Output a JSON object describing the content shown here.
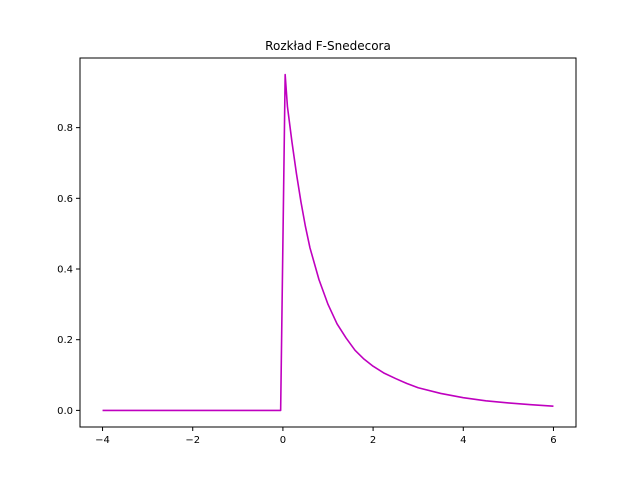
{
  "chart_data": {
    "type": "line",
    "title": "Rozkład F-Snedecora",
    "xlabel": "",
    "ylabel": "",
    "xlim": [
      -4.5,
      6.5
    ],
    "ylim": [
      -0.047,
      0.997
    ],
    "grid": false,
    "xticks": [
      -4,
      -2,
      0,
      2,
      4,
      6
    ],
    "xtick_labels": [
      "−4",
      "−2",
      "0",
      "2",
      "4",
      "6"
    ],
    "yticks": [
      0.0,
      0.2,
      0.4,
      0.6,
      0.8
    ],
    "ytick_labels": [
      "0.0",
      "0.2",
      "0.4",
      "0.6",
      "0.8"
    ],
    "series": [
      {
        "color": "#bf00bf",
        "x": [
          -4.0,
          -3.0,
          -2.0,
          -1.0,
          -0.1,
          -0.05,
          0.05,
          0.1,
          0.2,
          0.3,
          0.4,
          0.5,
          0.6,
          0.8,
          1.0,
          1.2,
          1.4,
          1.6,
          1.8,
          2.0,
          2.25,
          2.5,
          2.75,
          3.0,
          3.5,
          4.0,
          4.5,
          5.0,
          5.5,
          6.0
        ],
        "y": [
          0.0,
          0.0,
          0.0,
          0.0,
          0.0,
          0.0,
          0.95,
          0.86,
          0.76,
          0.67,
          0.59,
          0.52,
          0.46,
          0.37,
          0.3,
          0.245,
          0.205,
          0.17,
          0.145,
          0.125,
          0.105,
          0.09,
          0.076,
          0.064,
          0.048,
          0.036,
          0.027,
          0.021,
          0.016,
          0.012
        ]
      }
    ]
  }
}
